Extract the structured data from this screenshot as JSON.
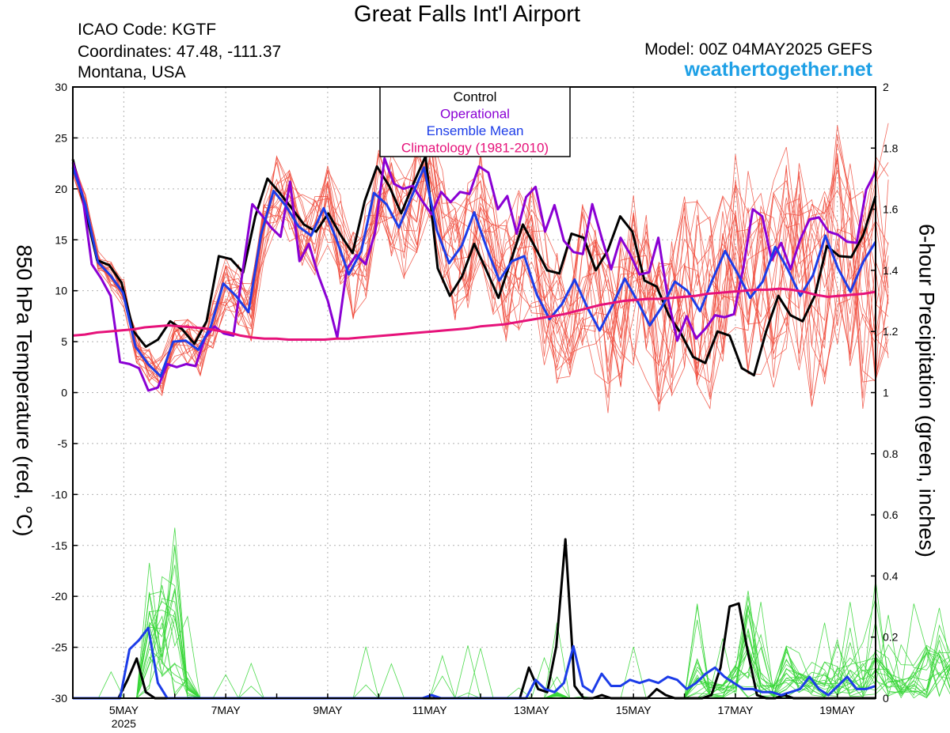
{
  "header": {
    "title": "Great Falls Int'l Airport",
    "icao": "ICAO Code: KGTF",
    "coordinates": "Coordinates: 47.48, -111.37",
    "region": "Montana, USA",
    "model": "Model: 00Z 04MAY2025 GEFS",
    "site": "weathertogether.net"
  },
  "chart_data": {
    "type": "line",
    "title": "Great Falls Int'l Airport",
    "ylabel_left": "850 hPa Temperature (red, °C)",
    "ylabel_right": "6-hour Precipitation (green, inches)",
    "ylim_left": [
      -30,
      30
    ],
    "ylim_right": [
      0,
      2
    ],
    "yticks_left": [
      "30",
      "25",
      "20",
      "15",
      "10",
      "5",
      "0",
      "-5",
      "-10",
      "-15",
      "-20",
      "-25",
      "-30"
    ],
    "yticks_right": [
      "2",
      "1.8",
      "1.6",
      "1.4",
      "1.2",
      "1",
      "0.8",
      "0.6",
      "0.4",
      "0.2",
      "0"
    ],
    "x_start_hours_after_4may00z": 0,
    "x_end_hours_after_4may00z": 378,
    "x_step_hours": 6,
    "xticks": [
      {
        "label": "5MAY",
        "sub": "2025",
        "day": 5
      },
      {
        "label": "7MAY",
        "day": 7
      },
      {
        "label": "9MAY",
        "day": 9
      },
      {
        "label": "11MAY",
        "day": 11
      },
      {
        "label": "13MAY",
        "day": 13
      },
      {
        "label": "15MAY",
        "day": 15
      },
      {
        "label": "17MAY",
        "day": 17
      },
      {
        "label": "19MAY",
        "day": 19
      }
    ],
    "grid": true,
    "legend_position": "top-center",
    "legend": [
      {
        "name": "Control",
        "color": "#000000"
      },
      {
        "name": "Operational",
        "color": "#8a00d4"
      },
      {
        "name": "Ensemble Mean",
        "color": "#1c3ce8"
      },
      {
        "name": "Climatology (1981-2010)",
        "color": "#e6127a"
      }
    ],
    "colors": {
      "members_temp": "#f04b3c",
      "members_precip": "#36d636",
      "control": "#000000",
      "operational": "#8a00d4",
      "mean": "#1c3ce8",
      "climatology": "#e6127a"
    },
    "series": [
      {
        "name": "Control",
        "axis": "temp",
        "color": "#000000",
        "values": [
          22.9,
          18,
          13,
          12.5,
          10.8,
          6,
          4.5,
          5.2,
          7,
          6.2,
          4.8,
          7,
          13.4,
          13.1,
          11.8,
          17.3,
          21,
          19.6,
          18.1,
          16.5,
          15.8,
          17.6,
          15.5,
          13.7,
          18.8,
          22.2,
          20.3,
          17.6,
          20.5,
          23.2,
          12.2,
          9.5,
          11.4,
          14.6,
          12,
          9.3,
          12.9,
          16.5,
          14.3,
          12,
          11.7,
          15.6,
          15.2,
          12,
          14,
          17.3,
          15.8,
          11,
          10.4,
          7.6,
          5.8,
          3.5,
          2.9,
          6,
          5.6,
          2.4,
          1.7,
          6,
          9.5,
          7.6,
          7,
          9.5,
          14.4,
          13.4,
          13.3,
          15.5,
          19.3
        ]
      },
      {
        "name": "Operational",
        "axis": "temp",
        "color": "#8a00d4",
        "values": [
          22.6,
          19.5,
          12.6,
          11.2,
          9.5,
          3,
          2.8,
          2.4,
          0.2,
          0.5,
          2.8,
          2.5,
          2.8,
          2.6,
          5.4,
          6.5,
          5.8,
          5.6,
          12,
          18.5,
          17.4,
          16.2,
          15.3,
          20.7,
          12.9,
          14.6,
          11.5,
          9,
          5.4,
          12.1,
          13.5,
          12.6,
          15.7,
          23,
          20.5,
          20,
          20.3,
          18.8,
          17.5,
          19.7,
          18.7,
          19.7,
          19.5,
          22.2,
          21.6,
          18,
          19.3,
          15.6,
          19.2,
          20.2,
          15.8,
          18.4,
          14.9,
          13.8,
          13.6,
          18.5,
          15.2,
          12.1,
          15.2,
          13.6,
          11.6,
          11.8,
          15.2,
          9.3,
          5.1,
          7.5,
          5.3,
          6.3,
          7.6,
          7.4,
          7.7,
          12.3,
          18,
          17.3,
          13,
          14.7,
          12.1,
          15,
          17,
          17.2,
          15.8,
          15.5,
          14.8,
          14.7,
          19.9,
          21.7
        ]
      },
      {
        "name": "Ensemble Mean",
        "axis": "temp",
        "color": "#1c3ce8",
        "values": [
          22.1,
          18.5,
          12.8,
          11.5,
          9.8,
          4.5,
          2.8,
          1.6,
          5,
          5.1,
          4.2,
          6.5,
          10.7,
          9.5,
          7.9,
          15.5,
          19.8,
          18.3,
          16.3,
          15.4,
          18.1,
          15.1,
          11.6,
          13.9,
          19.6,
          18.5,
          16.2,
          19.2,
          22.1,
          16,
          12.7,
          14.4,
          17.7,
          14.2,
          11,
          12.9,
          13.4,
          9.6,
          7.2,
          8.7,
          11.1,
          8.4,
          6.1,
          8.5,
          11.2,
          9,
          6.6,
          8.5,
          10.9,
          10,
          8,
          11.1,
          13.9,
          11.7,
          9.3,
          10.9,
          14.3,
          12.1,
          9.5,
          11.5,
          15.4,
          12.2,
          9.9,
          12.8,
          14.8
        ]
      },
      {
        "name": "Climatology (1981-2010)",
        "axis": "temp",
        "color": "#e6127a",
        "values": [
          5.6,
          5.7,
          5.9,
          6,
          6.1,
          6.2,
          6.4,
          6.5,
          6.6,
          6.5,
          6.4,
          6.3,
          6.1,
          5.9,
          5.6,
          5.4,
          5.3,
          5.3,
          5.2,
          5.2,
          5.2,
          5.2,
          5.3,
          5.3,
          5.4,
          5.5,
          5.6,
          5.7,
          5.8,
          5.9,
          6,
          6.1,
          6.2,
          6.3,
          6.5,
          6.6,
          6.7,
          6.9,
          7.1,
          7.3,
          7.5,
          7.7,
          8,
          8.3,
          8.6,
          8.8,
          9,
          9.1,
          9.2,
          9.2,
          9.3,
          9.4,
          9.5,
          9.7,
          9.8,
          9.9,
          10,
          10.1,
          10.1,
          10.2,
          10.1,
          9.9,
          9.6,
          9.4,
          9.5,
          9.6,
          9.7,
          9.9
        ]
      },
      {
        "name": "Control",
        "axis": "precip",
        "color": "#000000",
        "values": [
          0,
          0,
          0,
          0,
          0,
          0,
          0.06,
          0.13,
          0.02,
          0,
          0,
          0,
          0,
          0,
          0,
          0,
          0,
          0,
          0,
          0,
          0,
          0,
          0,
          0,
          0,
          0,
          0,
          0,
          0,
          0,
          0,
          0,
          0,
          0,
          0,
          0,
          0,
          0,
          0,
          0,
          0,
          0,
          0,
          0,
          0,
          0,
          0,
          0,
          0,
          0,
          0.1,
          0.03,
          0.02,
          0.17,
          0.52,
          0.04,
          0,
          0,
          0.01,
          0,
          0,
          0,
          0,
          0,
          0.03,
          0.01,
          0,
          0,
          0,
          0,
          0.01,
          0.1,
          0.3,
          0.31,
          0.15,
          0.01,
          0,
          0,
          0.01,
          0,
          0,
          0,
          0,
          0,
          0,
          0,
          0,
          0,
          0
        ]
      },
      {
        "name": "Ensemble Mean",
        "axis": "precip",
        "color": "#1c3ce8",
        "values": [
          0,
          0,
          0,
          0,
          0,
          0,
          0.16,
          0.19,
          0.23,
          0.05,
          0,
          0,
          0,
          0,
          0,
          0,
          0,
          0,
          0,
          0,
          0,
          0,
          0,
          0,
          0,
          0,
          0,
          0,
          0,
          0,
          0,
          0,
          0,
          0,
          0,
          0,
          0,
          0,
          0.01,
          0,
          0,
          0,
          0,
          0,
          0,
          0,
          0,
          0,
          0,
          0.06,
          0.03,
          0.02,
          0.05,
          0.17,
          0.04,
          0.02,
          0.08,
          0.04,
          0.04,
          0.06,
          0.05,
          0.06,
          0.05,
          0.07,
          0.06,
          0.03,
          0.05,
          0.08,
          0.1,
          0.07,
          0.05,
          0.03,
          0.03,
          0.02,
          0.02,
          0.01,
          0.02,
          0.03,
          0.07,
          0.03,
          0.01,
          0.04,
          0.07,
          0.03,
          0.03,
          0.04
        ]
      }
    ]
  }
}
